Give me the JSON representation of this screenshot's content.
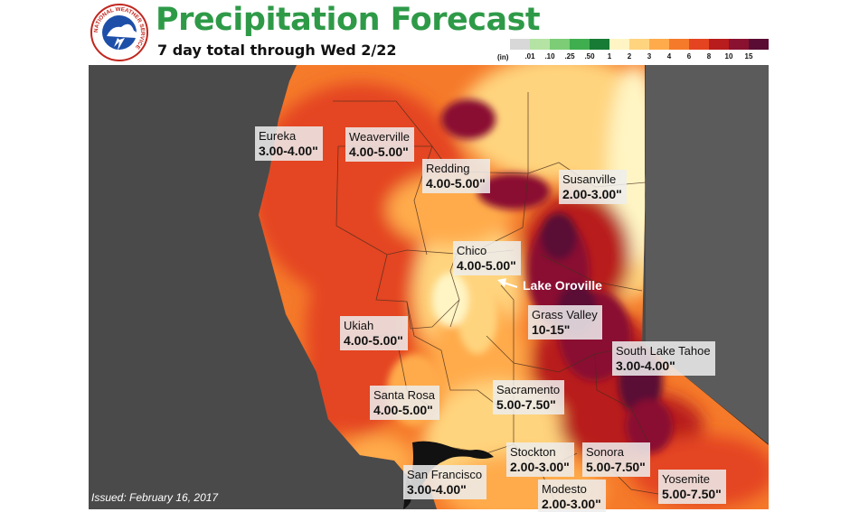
{
  "header": {
    "title": "Precipitation Forecast",
    "subtitle": "7 day total through Wed 2/22",
    "logo_text": "NATIONAL WEATHER SERVICE"
  },
  "legend": {
    "unit": "(in)",
    "ticks": [
      ".01",
      ".10",
      ".25",
      ".50",
      "1",
      "2",
      "3",
      "4",
      "6",
      "8",
      "10",
      "15"
    ],
    "colors": [
      "#d8d8d8",
      "#b4e3a4",
      "#7ccd76",
      "#3fae4f",
      "#177a35",
      "#fff5c4",
      "#ffd47e",
      "#ffab4c",
      "#f57a2a",
      "#e44420",
      "#b81c1c",
      "#8a1130",
      "#5a0c34"
    ]
  },
  "map": {
    "cities": [
      {
        "name": "Eureka",
        "amount": "3.00-4.00\""
      },
      {
        "name": "Weaverville",
        "amount": "4.00-5.00\""
      },
      {
        "name": "Redding",
        "amount": "4.00-5.00\""
      },
      {
        "name": "Susanville",
        "amount": "2.00-3.00\""
      },
      {
        "name": "Chico",
        "amount": "4.00-5.00\""
      },
      {
        "name": "Grass Valley",
        "amount": "10-15\""
      },
      {
        "name": "Ukiah",
        "amount": "4.00-5.00\""
      },
      {
        "name": "South Lake Tahoe",
        "amount": "3.00-4.00\""
      },
      {
        "name": "Santa Rosa",
        "amount": "4.00-5.00\""
      },
      {
        "name": "Sacramento",
        "amount": "5.00-7.50\""
      },
      {
        "name": "Stockton",
        "amount": "2.00-3.00\""
      },
      {
        "name": "Sonora",
        "amount": "5.00-7.50\""
      },
      {
        "name": "San Francisco",
        "amount": "3.00-4.00\""
      },
      {
        "name": "Modesto",
        "amount": "2.00-3.00\""
      },
      {
        "name": "Yosemite",
        "amount": "5.00-7.50\""
      }
    ],
    "callout": "Lake Oroville",
    "issued": "Issued: February 16, 2017"
  }
}
